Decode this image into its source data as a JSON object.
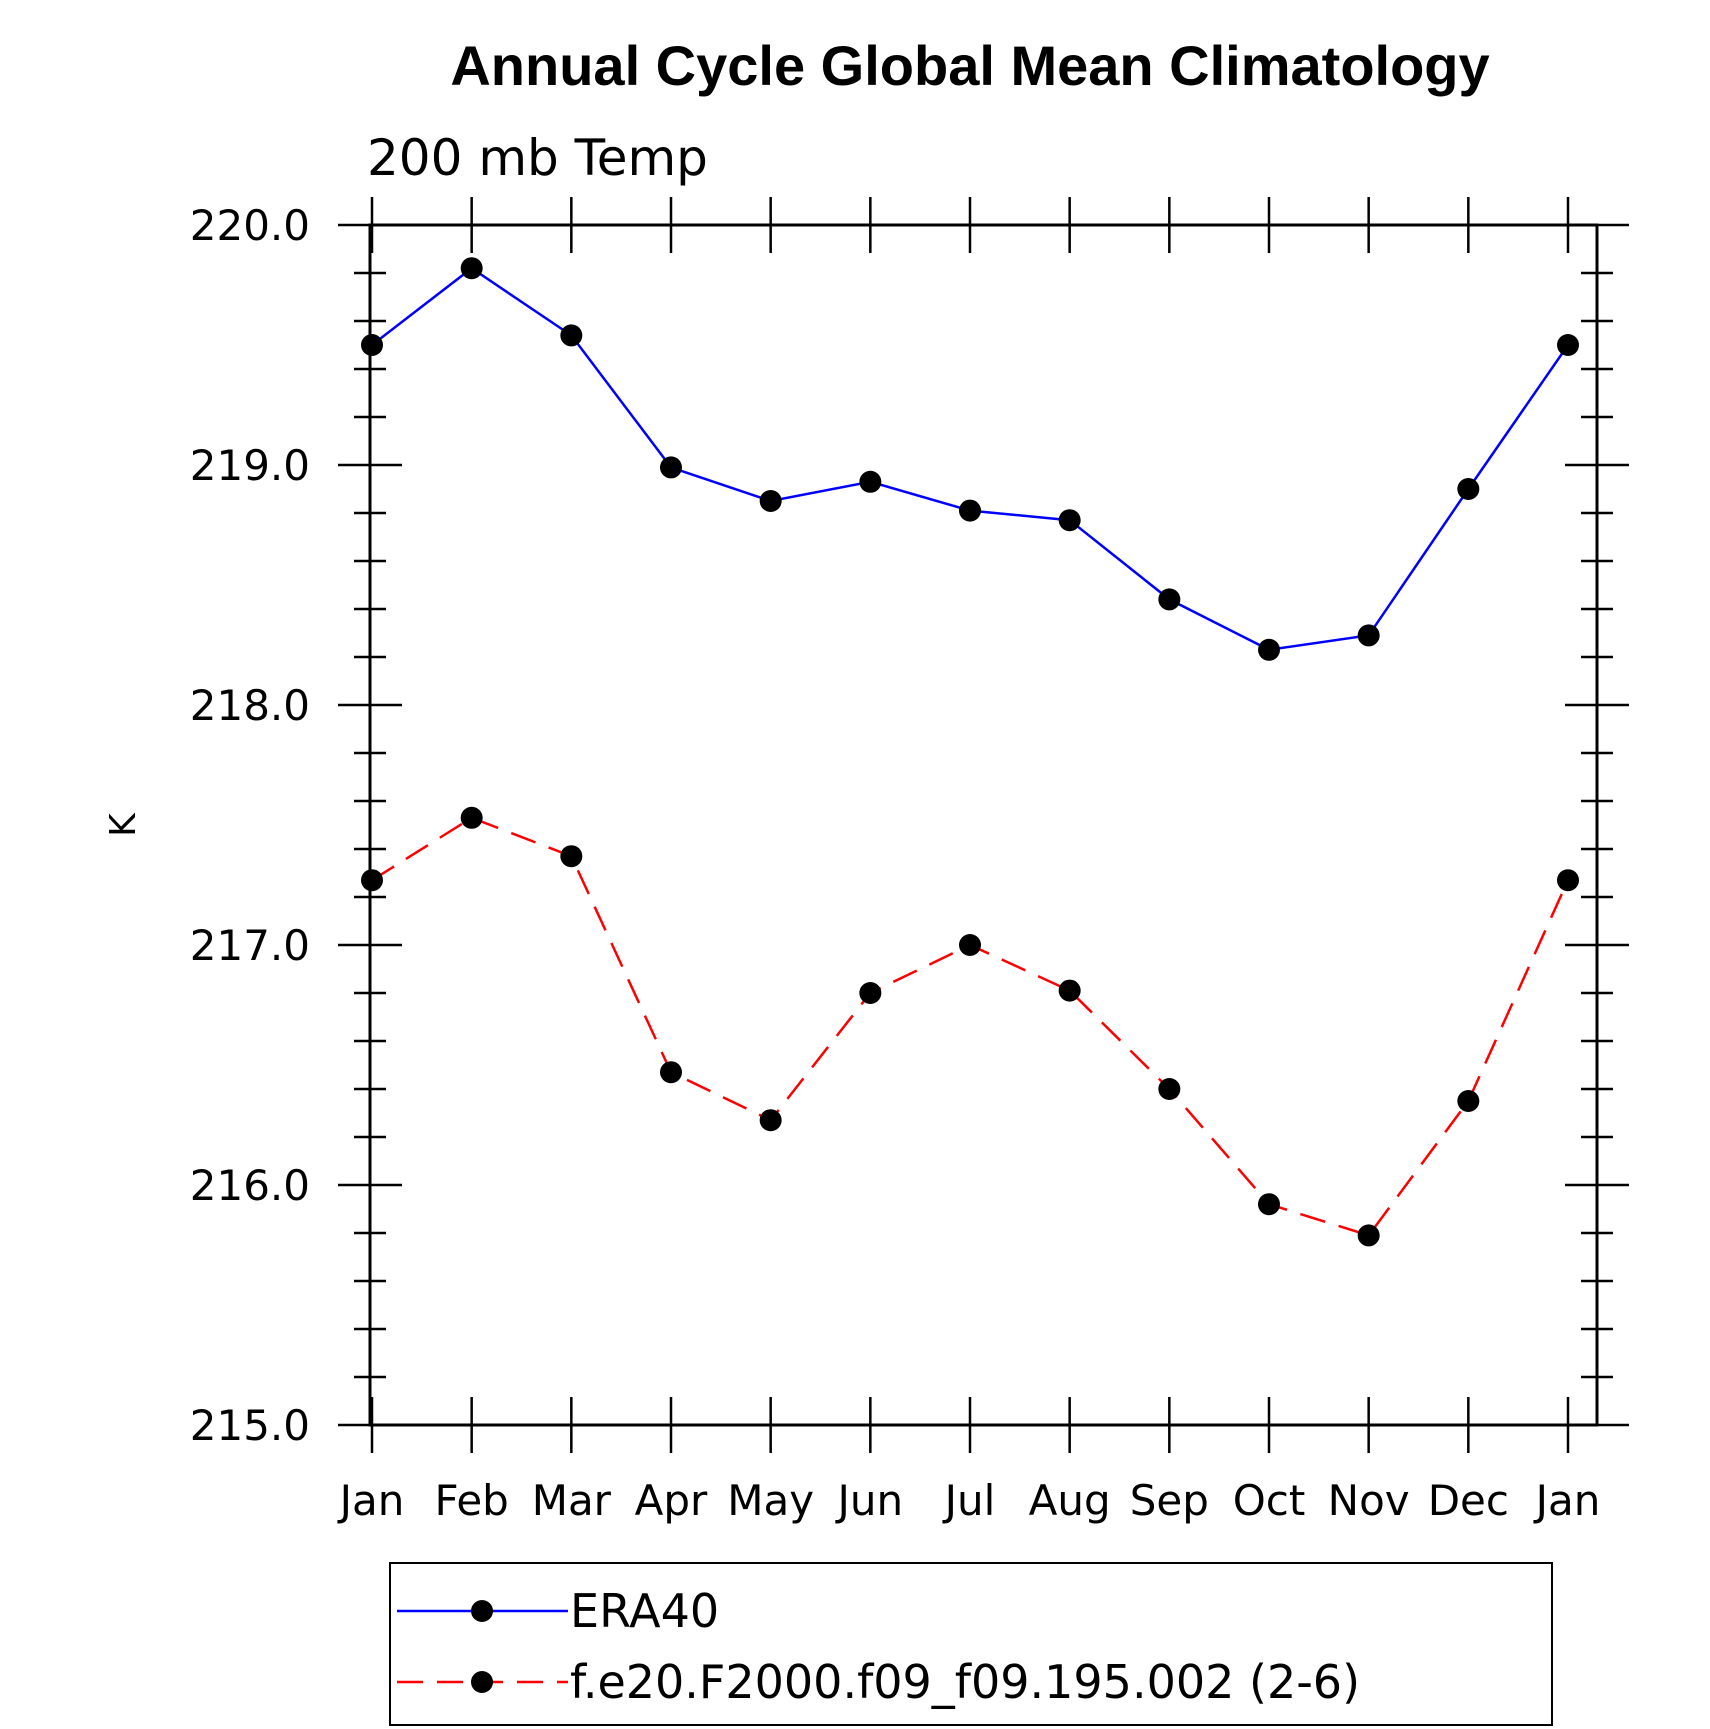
{
  "chart_data": {
    "type": "line",
    "title": "Annual Cycle Global Mean Climatology",
    "subtitle": "200 mb Temp",
    "ylabel": "K",
    "xlabel": "",
    "categories": [
      "Jan",
      "Feb",
      "Mar",
      "Apr",
      "May",
      "Jun",
      "Jul",
      "Aug",
      "Sep",
      "Oct",
      "Nov",
      "Dec",
      "Jan"
    ],
    "ylim": [
      215.0,
      220.0
    ],
    "yticks": [
      "215.0",
      "216.0",
      "217.0",
      "218.0",
      "219.0",
      "220.0"
    ],
    "grid": false,
    "legend_position": "bottom",
    "series": [
      {
        "name": "ERA40",
        "color": "#0000ff",
        "dash": "solid",
        "marker": "filled-circle",
        "values": [
          219.5,
          219.82,
          219.54,
          218.99,
          218.85,
          218.93,
          218.81,
          218.77,
          218.44,
          218.23,
          218.29,
          218.9,
          219.5
        ]
      },
      {
        "name": "f.e20.F2000.f09_f09.195.002 (2-6)",
        "color": "#ff0000",
        "dash": "dashed",
        "marker": "filled-circle",
        "values": [
          217.27,
          217.53,
          217.37,
          216.47,
          216.27,
          216.8,
          217.0,
          216.81,
          216.4,
          215.92,
          215.79,
          216.35,
          217.27
        ]
      }
    ]
  }
}
